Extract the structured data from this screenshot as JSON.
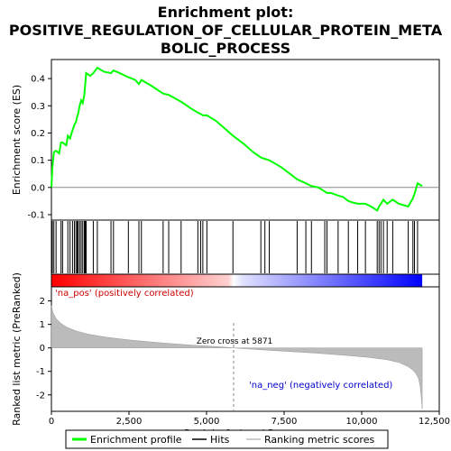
{
  "chart_data": {
    "type": "line",
    "title_lines": [
      "Enrichment plot:",
      "POSITIVE_REGULATION_OF_CELLULAR_PROTEIN_META",
      "BOLIC_PROCESS"
    ],
    "xlabel": "Rank in Ordered Dataset",
    "ylabel_top": "Enrichment score (ES)",
    "ylabel_bottom": "Ranked list metric (PreRanked)",
    "xlim": [
      0,
      12500
    ],
    "xticks": [
      0,
      2500,
      5000,
      7500,
      10000,
      12500
    ],
    "xtick_labels": [
      "0",
      "2,500",
      "5,000",
      "7,500",
      "10,000",
      "12,500"
    ],
    "es_ylim": [
      -0.12,
      0.47
    ],
    "es_yticks": [
      -0.1,
      0.0,
      0.1,
      0.2,
      0.3,
      0.4
    ],
    "es_ytick_labels": [
      "-0.1",
      "0.0",
      "0.1",
      "0.2",
      "0.3",
      "0.4"
    ],
    "metric_ylim": [
      -2.7,
      2.6
    ],
    "metric_yticks": [
      -2,
      -1,
      0,
      1,
      2
    ],
    "metric_ytick_labels": [
      "-2",
      "-1",
      "0",
      "1",
      "2"
    ],
    "zero_cross": 5871,
    "zero_cross_label": "Zero cross at 5871",
    "pos_label": "'na_pos' (positively correlated)",
    "neg_label": "'na_neg' (negatively correlated)",
    "n_genes": 11950,
    "hits": [
      30,
      80,
      150,
      310,
      360,
      530,
      600,
      680,
      740,
      790,
      830,
      860,
      910,
      960,
      1010,
      1060,
      1090,
      1120,
      1350,
      1480,
      1920,
      2000,
      2480,
      2820,
      2900,
      3600,
      3780,
      4180,
      4720,
      4810,
      4880,
      5010,
      5850,
      6750,
      6880,
      7020,
      7920,
      8200,
      8380,
      8810,
      8880,
      9240,
      9570,
      9870,
      10120,
      10500,
      10560,
      10620,
      10700,
      10820,
      11000,
      11500,
      11650,
      11700,
      11800
    ],
    "es_curve": {
      "x": [
        0,
        30,
        80,
        150,
        250,
        310,
        360,
        480,
        530,
        600,
        680,
        740,
        790,
        830,
        860,
        910,
        960,
        1010,
        1060,
        1090,
        1120,
        1250,
        1350,
        1480,
        1700,
        1920,
        2000,
        2200,
        2480,
        2700,
        2820,
        2900,
        3200,
        3600,
        3780,
        4180,
        4500,
        4720,
        4810,
        4880,
        5010,
        5300,
        5600,
        5850,
        6200,
        6500,
        6750,
        6880,
        7020,
        7400,
        7920,
        8200,
        8380,
        8600,
        8810,
        8880,
        9000,
        9240,
        9400,
        9570,
        9700,
        9870,
        10000,
        10120,
        10300,
        10500,
        10560,
        10620,
        10700,
        10820,
        11000,
        11200,
        11500,
        11650,
        11700,
        11800,
        11950
      ],
      "y": [
        0.0,
        0.07,
        0.13,
        0.135,
        0.125,
        0.165,
        0.165,
        0.155,
        0.19,
        0.18,
        0.21,
        0.23,
        0.24,
        0.26,
        0.27,
        0.3,
        0.32,
        0.31,
        0.34,
        0.38,
        0.42,
        0.41,
        0.42,
        0.44,
        0.425,
        0.42,
        0.43,
        0.42,
        0.405,
        0.395,
        0.38,
        0.395,
        0.375,
        0.345,
        0.34,
        0.315,
        0.29,
        0.275,
        0.27,
        0.265,
        0.265,
        0.245,
        0.215,
        0.19,
        0.16,
        0.13,
        0.11,
        0.105,
        0.1,
        0.075,
        0.03,
        0.015,
        0.005,
        0.0,
        -0.015,
        -0.02,
        -0.02,
        -0.03,
        -0.035,
        -0.05,
        -0.055,
        -0.06,
        -0.06,
        -0.06,
        -0.07,
        -0.085,
        -0.07,
        -0.06,
        -0.045,
        -0.06,
        -0.045,
        -0.06,
        -0.07,
        -0.04,
        -0.025,
        0.015,
        0.005
      ]
    },
    "metric_curve": {
      "x": [
        0,
        50,
        150,
        300,
        500,
        800,
        1200,
        1800,
        2500,
        3500,
        4500,
        5500,
        5871,
        6500,
        7500,
        8500,
        9500,
        10200,
        10800,
        11200,
        11500,
        11650,
        11750,
        11830,
        11880,
        11920,
        11950
      ],
      "y": [
        1.8,
        1.5,
        1.25,
        1.05,
        0.88,
        0.72,
        0.58,
        0.45,
        0.34,
        0.22,
        0.12,
        0.04,
        0.0,
        -0.06,
        -0.14,
        -0.22,
        -0.32,
        -0.4,
        -0.5,
        -0.62,
        -0.8,
        -0.95,
        -1.1,
        -1.3,
        -1.6,
        -2.1,
        -2.6
      ]
    },
    "colors": {
      "es_line": "#00ff00",
      "hit": "#000000",
      "metric_fill": "#bbbbbb",
      "zero_line": "#888888",
      "bar_pos": "#ff0000",
      "bar_neutral": "#ffffff",
      "bar_neg": "#0000ff"
    },
    "legend": {
      "items": [
        {
          "label": "Enrichment profile",
          "color": "#00ff00"
        },
        {
          "label": "Hits",
          "color": "#000000"
        },
        {
          "label": "Ranking metric scores",
          "color": "#bbbbbb"
        }
      ]
    }
  }
}
